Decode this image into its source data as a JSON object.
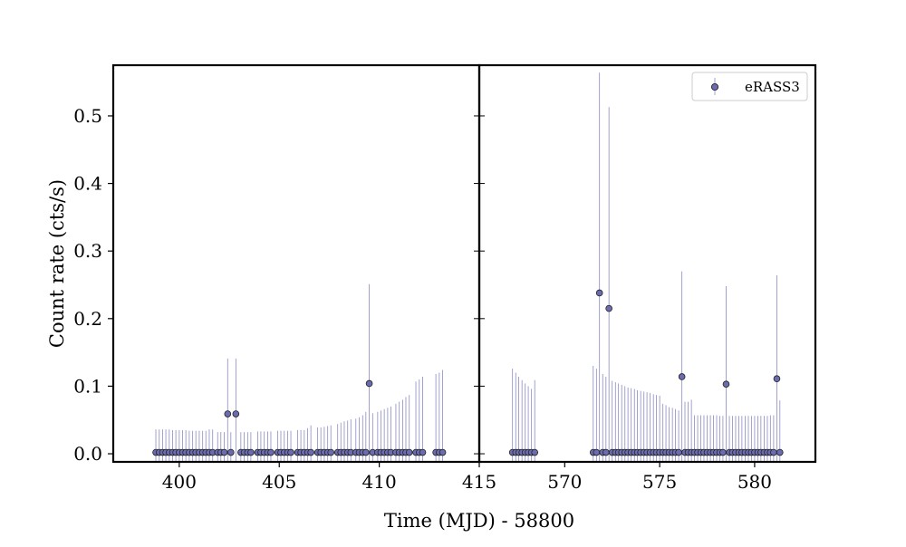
{
  "chart_data": {
    "type": "scatter",
    "title": "",
    "xlabel": "Time (MJD) - 58800",
    "ylabel": "Count rate (cts/s)",
    "ylim": [
      -0.012,
      0.575
    ],
    "yticks": [
      0.0,
      0.1,
      0.2,
      0.3,
      0.4,
      0.5
    ],
    "ytick_labels": [
      "0.0",
      "0.1",
      "0.2",
      "0.3",
      "0.4",
      "0.5"
    ],
    "legend": {
      "label": "eRASS3",
      "placement": "upper right"
    },
    "marker_color": "#6b6bb0",
    "errorbar_color": "#8b8bc4",
    "panels": [
      {
        "name": "left",
        "xlim": [
          396.7,
          415.0
        ],
        "xticks": [
          400,
          405,
          410,
          415
        ],
        "xtick_labels": [
          "400",
          "405",
          "410",
          "415"
        ],
        "points": [
          {
            "x": 398.83,
            "y": 0.002,
            "yerr": 0.034
          },
          {
            "x": 399.0,
            "y": 0.002,
            "yerr": 0.034
          },
          {
            "x": 399.17,
            "y": 0.002,
            "yerr": 0.034
          },
          {
            "x": 399.33,
            "y": 0.002,
            "yerr": 0.034
          },
          {
            "x": 399.5,
            "y": 0.002,
            "yerr": 0.034
          },
          {
            "x": 399.67,
            "y": 0.002,
            "yerr": 0.033
          },
          {
            "x": 399.83,
            "y": 0.002,
            "yerr": 0.033
          },
          {
            "x": 400.0,
            "y": 0.002,
            "yerr": 0.033
          },
          {
            "x": 400.17,
            "y": 0.002,
            "yerr": 0.033
          },
          {
            "x": 400.33,
            "y": 0.002,
            "yerr": 0.033
          },
          {
            "x": 400.5,
            "y": 0.002,
            "yerr": 0.032
          },
          {
            "x": 400.67,
            "y": 0.002,
            "yerr": 0.032
          },
          {
            "x": 400.83,
            "y": 0.002,
            "yerr": 0.032
          },
          {
            "x": 401.0,
            "y": 0.002,
            "yerr": 0.032
          },
          {
            "x": 401.17,
            "y": 0.002,
            "yerr": 0.032
          },
          {
            "x": 401.33,
            "y": 0.002,
            "yerr": 0.032
          },
          {
            "x": 401.5,
            "y": 0.002,
            "yerr": 0.034
          },
          {
            "x": 401.67,
            "y": 0.002,
            "yerr": 0.034
          },
          {
            "x": 401.92,
            "y": 0.002,
            "yerr": 0.03
          },
          {
            "x": 402.08,
            "y": 0.002,
            "yerr": 0.03
          },
          {
            "x": 402.25,
            "y": 0.002,
            "yerr": 0.03
          },
          {
            "x": 402.42,
            "y": 0.059,
            "yerr": 0.082
          },
          {
            "x": 402.58,
            "y": 0.002,
            "yerr": 0.03
          },
          {
            "x": 402.83,
            "y": 0.059,
            "yerr": 0.082
          },
          {
            "x": 403.08,
            "y": 0.002,
            "yerr": 0.03
          },
          {
            "x": 403.25,
            "y": 0.002,
            "yerr": 0.03
          },
          {
            "x": 403.42,
            "y": 0.002,
            "yerr": 0.03
          },
          {
            "x": 403.58,
            "y": 0.002,
            "yerr": 0.03
          },
          {
            "x": 403.92,
            "y": 0.002,
            "yerr": 0.031
          },
          {
            "x": 404.08,
            "y": 0.002,
            "yerr": 0.031
          },
          {
            "x": 404.25,
            "y": 0.002,
            "yerr": 0.031
          },
          {
            "x": 404.42,
            "y": 0.002,
            "yerr": 0.031
          },
          {
            "x": 404.58,
            "y": 0.002,
            "yerr": 0.031
          },
          {
            "x": 404.92,
            "y": 0.002,
            "yerr": 0.032
          },
          {
            "x": 405.08,
            "y": 0.002,
            "yerr": 0.032
          },
          {
            "x": 405.25,
            "y": 0.002,
            "yerr": 0.032
          },
          {
            "x": 405.42,
            "y": 0.002,
            "yerr": 0.032
          },
          {
            "x": 405.58,
            "y": 0.002,
            "yerr": 0.032
          },
          {
            "x": 405.92,
            "y": 0.002,
            "yerr": 0.033
          },
          {
            "x": 406.08,
            "y": 0.002,
            "yerr": 0.033
          },
          {
            "x": 406.25,
            "y": 0.002,
            "yerr": 0.033
          },
          {
            "x": 406.42,
            "y": 0.002,
            "yerr": 0.036
          },
          {
            "x": 406.58,
            "y": 0.002,
            "yerr": 0.04
          },
          {
            "x": 406.92,
            "y": 0.002,
            "yerr": 0.037
          },
          {
            "x": 407.08,
            "y": 0.002,
            "yerr": 0.037
          },
          {
            "x": 407.25,
            "y": 0.002,
            "yerr": 0.038
          },
          {
            "x": 407.42,
            "y": 0.002,
            "yerr": 0.039
          },
          {
            "x": 407.58,
            "y": 0.002,
            "yerr": 0.04
          },
          {
            "x": 407.92,
            "y": 0.002,
            "yerr": 0.042
          },
          {
            "x": 408.08,
            "y": 0.002,
            "yerr": 0.044
          },
          {
            "x": 408.25,
            "y": 0.002,
            "yerr": 0.046
          },
          {
            "x": 408.42,
            "y": 0.002,
            "yerr": 0.047
          },
          {
            "x": 408.58,
            "y": 0.002,
            "yerr": 0.049
          },
          {
            "x": 408.83,
            "y": 0.002,
            "yerr": 0.05
          },
          {
            "x": 409.0,
            "y": 0.002,
            "yerr": 0.052
          },
          {
            "x": 409.17,
            "y": 0.002,
            "yerr": 0.055
          },
          {
            "x": 409.33,
            "y": 0.002,
            "yerr": 0.06
          },
          {
            "x": 409.5,
            "y": 0.104,
            "yerr": 0.147
          },
          {
            "x": 409.67,
            "y": 0.002,
            "yerr": 0.058
          },
          {
            "x": 409.92,
            "y": 0.002,
            "yerr": 0.06
          },
          {
            "x": 410.08,
            "y": 0.002,
            "yerr": 0.062
          },
          {
            "x": 410.25,
            "y": 0.002,
            "yerr": 0.064
          },
          {
            "x": 410.42,
            "y": 0.002,
            "yerr": 0.066
          },
          {
            "x": 410.58,
            "y": 0.002,
            "yerr": 0.068
          },
          {
            "x": 410.83,
            "y": 0.002,
            "yerr": 0.072
          },
          {
            "x": 411.0,
            "y": 0.002,
            "yerr": 0.075
          },
          {
            "x": 411.17,
            "y": 0.002,
            "yerr": 0.078
          },
          {
            "x": 411.33,
            "y": 0.002,
            "yerr": 0.082
          },
          {
            "x": 411.5,
            "y": 0.002,
            "yerr": 0.085
          },
          {
            "x": 411.83,
            "y": 0.002,
            "yerr": 0.105
          },
          {
            "x": 412.0,
            "y": 0.002,
            "yerr": 0.108
          },
          {
            "x": 412.17,
            "y": 0.002,
            "yerr": 0.112
          },
          {
            "x": 412.83,
            "y": 0.002,
            "yerr": 0.116
          },
          {
            "x": 413.0,
            "y": 0.002,
            "yerr": 0.118
          },
          {
            "x": 413.17,
            "y": 0.002,
            "yerr": 0.122
          }
        ]
      },
      {
        "name": "right",
        "xlim": [
          565.5,
          583.2
        ],
        "xticks": [
          570,
          575,
          580
        ],
        "xtick_labels": [
          "570",
          "575",
          "580"
        ],
        "points": [
          {
            "x": 567.25,
            "y": 0.002,
            "yerr": 0.124
          },
          {
            "x": 567.42,
            "y": 0.002,
            "yerr": 0.118
          },
          {
            "x": 567.58,
            "y": 0.002,
            "yerr": 0.112
          },
          {
            "x": 567.75,
            "y": 0.002,
            "yerr": 0.107
          },
          {
            "x": 567.92,
            "y": 0.002,
            "yerr": 0.102
          },
          {
            "x": 568.08,
            "y": 0.002,
            "yerr": 0.098
          },
          {
            "x": 568.25,
            "y": 0.002,
            "yerr": 0.094
          },
          {
            "x": 568.42,
            "y": 0.002,
            "yerr": 0.107
          },
          {
            "x": 571.5,
            "y": 0.002,
            "yerr": 0.128
          },
          {
            "x": 571.67,
            "y": 0.002,
            "yerr": 0.124
          },
          {
            "x": 571.83,
            "y": 0.238,
            "yerr": 0.326
          },
          {
            "x": 572.0,
            "y": 0.002,
            "yerr": 0.116
          },
          {
            "x": 572.17,
            "y": 0.002,
            "yerr": 0.112
          },
          {
            "x": 572.33,
            "y": 0.215,
            "yerr": 0.298
          },
          {
            "x": 572.5,
            "y": 0.002,
            "yerr": 0.106
          },
          {
            "x": 572.67,
            "y": 0.002,
            "yerr": 0.104
          },
          {
            "x": 572.83,
            "y": 0.002,
            "yerr": 0.102
          },
          {
            "x": 573.0,
            "y": 0.002,
            "yerr": 0.1
          },
          {
            "x": 573.17,
            "y": 0.002,
            "yerr": 0.098
          },
          {
            "x": 573.33,
            "y": 0.002,
            "yerr": 0.096
          },
          {
            "x": 573.5,
            "y": 0.002,
            "yerr": 0.095
          },
          {
            "x": 573.67,
            "y": 0.002,
            "yerr": 0.094
          },
          {
            "x": 573.83,
            "y": 0.002,
            "yerr": 0.092
          },
          {
            "x": 574.0,
            "y": 0.002,
            "yerr": 0.091
          },
          {
            "x": 574.17,
            "y": 0.002,
            "yerr": 0.09
          },
          {
            "x": 574.33,
            "y": 0.002,
            "yerr": 0.089
          },
          {
            "x": 574.5,
            "y": 0.002,
            "yerr": 0.088
          },
          {
            "x": 574.67,
            "y": 0.002,
            "yerr": 0.086
          },
          {
            "x": 574.83,
            "y": 0.002,
            "yerr": 0.085
          },
          {
            "x": 575.0,
            "y": 0.002,
            "yerr": 0.084
          },
          {
            "x": 575.17,
            "y": 0.002,
            "yerr": 0.072
          },
          {
            "x": 575.33,
            "y": 0.002,
            "yerr": 0.07
          },
          {
            "x": 575.5,
            "y": 0.002,
            "yerr": 0.067
          },
          {
            "x": 575.67,
            "y": 0.002,
            "yerr": 0.066
          },
          {
            "x": 575.83,
            "y": 0.002,
            "yerr": 0.064
          },
          {
            "x": 576.0,
            "y": 0.002,
            "yerr": 0.062
          },
          {
            "x": 576.17,
            "y": 0.114,
            "yerr": 0.156
          },
          {
            "x": 576.33,
            "y": 0.002,
            "yerr": 0.075
          },
          {
            "x": 576.5,
            "y": 0.002,
            "yerr": 0.075
          },
          {
            "x": 576.67,
            "y": 0.002,
            "yerr": 0.078
          },
          {
            "x": 576.83,
            "y": 0.002,
            "yerr": 0.055
          },
          {
            "x": 577.0,
            "y": 0.002,
            "yerr": 0.055
          },
          {
            "x": 577.17,
            "y": 0.002,
            "yerr": 0.055
          },
          {
            "x": 577.33,
            "y": 0.002,
            "yerr": 0.055
          },
          {
            "x": 577.5,
            "y": 0.002,
            "yerr": 0.055
          },
          {
            "x": 577.67,
            "y": 0.002,
            "yerr": 0.055
          },
          {
            "x": 577.83,
            "y": 0.002,
            "yerr": 0.055
          },
          {
            "x": 578.0,
            "y": 0.002,
            "yerr": 0.055
          },
          {
            "x": 578.17,
            "y": 0.002,
            "yerr": 0.054
          },
          {
            "x": 578.33,
            "y": 0.002,
            "yerr": 0.054
          },
          {
            "x": 578.5,
            "y": 0.103,
            "yerr": 0.145
          },
          {
            "x": 578.67,
            "y": 0.002,
            "yerr": 0.054
          },
          {
            "x": 578.83,
            "y": 0.002,
            "yerr": 0.054
          },
          {
            "x": 579.0,
            "y": 0.002,
            "yerr": 0.054
          },
          {
            "x": 579.17,
            "y": 0.002,
            "yerr": 0.054
          },
          {
            "x": 579.33,
            "y": 0.002,
            "yerr": 0.054
          },
          {
            "x": 579.5,
            "y": 0.002,
            "yerr": 0.054
          },
          {
            "x": 579.67,
            "y": 0.002,
            "yerr": 0.054
          },
          {
            "x": 579.83,
            "y": 0.002,
            "yerr": 0.054
          },
          {
            "x": 580.0,
            "y": 0.002,
            "yerr": 0.054
          },
          {
            "x": 580.17,
            "y": 0.002,
            "yerr": 0.054
          },
          {
            "x": 580.33,
            "y": 0.002,
            "yerr": 0.054
          },
          {
            "x": 580.5,
            "y": 0.002,
            "yerr": 0.054
          },
          {
            "x": 580.67,
            "y": 0.002,
            "yerr": 0.054
          },
          {
            "x": 580.83,
            "y": 0.002,
            "yerr": 0.055
          },
          {
            "x": 581.0,
            "y": 0.002,
            "yerr": 0.055
          },
          {
            "x": 581.17,
            "y": 0.111,
            "yerr": 0.153
          },
          {
            "x": 581.33,
            "y": 0.002,
            "yerr": 0.077
          }
        ]
      }
    ]
  }
}
